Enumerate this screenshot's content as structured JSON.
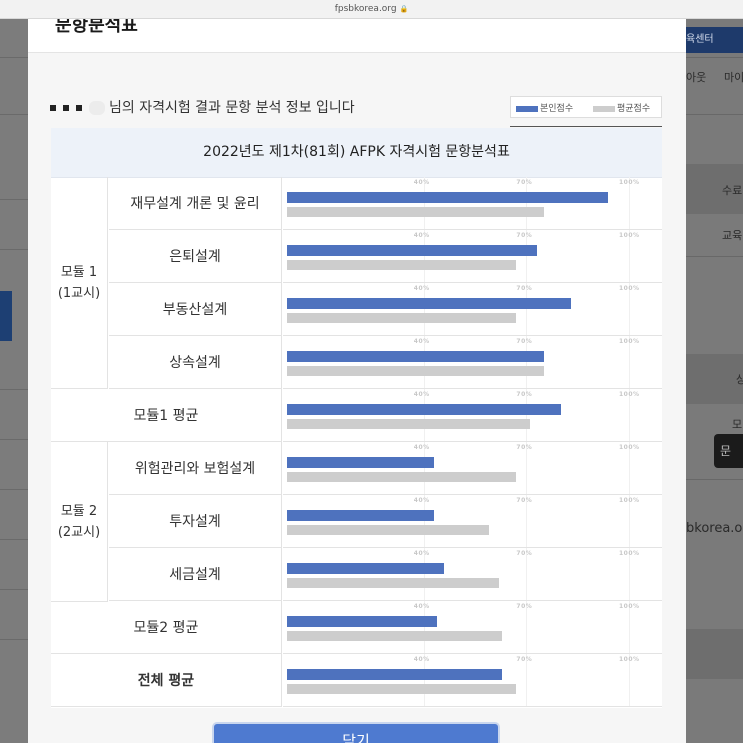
{
  "browser": {
    "url": "fpsbkorea.org"
  },
  "background": {
    "right_labels": {
      "nav_button": "육센터",
      "menu_1": "아웃",
      "menu_2": "마이",
      "col_1": "수료",
      "col_2": "교육",
      "col_3": "상",
      "col_4": "모",
      "button": "문",
      "domain": "bkorea.o"
    }
  },
  "modal": {
    "title": "문항분석표",
    "info_text": "님의 자격시험 결과 문항 분석 정보 입니다",
    "legend": {
      "mine": "본인점수",
      "avg": "평균점수"
    },
    "colors": {
      "mine": "#4e72be",
      "avg": "#cdcdcd"
    },
    "table_title": "2022년도 제1차(81회) AFPK 자격시험 문항분석표",
    "ticks": [
      "40%",
      "70%",
      "100%"
    ],
    "module1": {
      "label_1": "모듈 1",
      "label_2": "(1교시)"
    },
    "module2": {
      "label_1": "모듈 2",
      "label_2": "(2교시)"
    },
    "rows": [
      {
        "subject": "재무설계 개론 및 윤리",
        "mine": 94,
        "avg": 75
      },
      {
        "subject": "은퇴설계",
        "mine": 73,
        "avg": 67
      },
      {
        "subject": "부동산설계",
        "mine": 83,
        "avg": 67
      },
      {
        "subject": "상속설계",
        "mine": 75,
        "avg": 75
      },
      {
        "subject": "모듈1 평균",
        "mine": 80,
        "avg": 71
      },
      {
        "subject": "위험관리와 보험설계",
        "mine": 43,
        "avg": 67
      },
      {
        "subject": "투자설계",
        "mine": 43,
        "avg": 59
      },
      {
        "subject": "세금설계",
        "mine": 46,
        "avg": 62
      },
      {
        "subject": "모듈2 평균",
        "mine": 44,
        "avg": 63
      },
      {
        "subject": "전체 평균",
        "mine": 63,
        "avg": 67
      }
    ],
    "close_label": "닫기"
  }
}
